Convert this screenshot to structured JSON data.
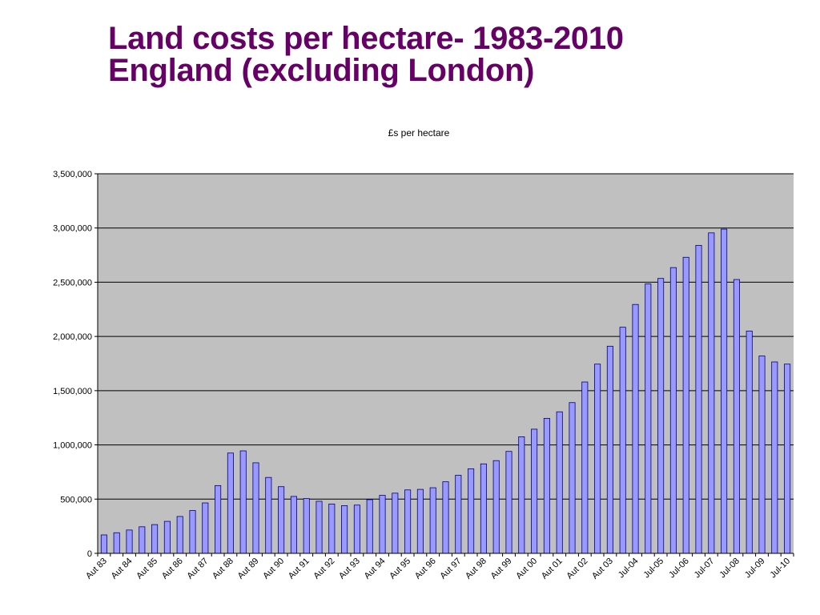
{
  "slide": {
    "title_line1": "Land costs per hectare- 1983-2010",
    "title_line2": "England (excluding London)",
    "title_color": "#660066"
  },
  "chart_data": {
    "type": "bar",
    "title": "£s per hectare",
    "xlabel": "",
    "ylabel": "",
    "ylim": [
      0,
      3500000
    ],
    "yticks": [
      0,
      500000,
      1000000,
      1500000,
      2000000,
      2500000,
      3000000,
      3500000
    ],
    "ytick_labels": [
      "0",
      "500,000",
      "1,000,000",
      "1,500,000",
      "2,000,000",
      "2,500,000",
      "3,000,000",
      "3,500,000"
    ],
    "grid": true,
    "plot_background": "#c0c0c0",
    "bar_color": "#9999ff",
    "bar_edge_color": "#000080",
    "categories": [
      "Aut 83",
      "",
      "Aut 84",
      "",
      "Aut 85",
      "",
      "Aut 86",
      "",
      "Aut 87",
      "",
      "Aut 88",
      "",
      "Aut 89",
      "",
      "Aut 90",
      "",
      "Aut 91",
      "",
      "Aut 92",
      "",
      "Aut 93",
      "",
      "Aut 94",
      "",
      "Aut 95",
      "",
      "Aut 96",
      "",
      "Aut 97",
      "",
      "Aut 98",
      "",
      "Aut 99",
      "",
      "Aut 00",
      "",
      "Aut 01",
      "",
      "Aut 02",
      "",
      "Aut 03",
      "",
      "Jul-04",
      "",
      "Jul-05",
      "",
      "Jul-06",
      "",
      "Jul-07",
      "",
      "Jul-08",
      "",
      "Jul-09",
      "",
      "Jul-10"
    ],
    "values": [
      170000,
      190000,
      215000,
      245000,
      265000,
      295000,
      340000,
      395000,
      465000,
      625000,
      925000,
      945000,
      835000,
      700000,
      615000,
      525000,
      505000,
      480000,
      455000,
      440000,
      445000,
      495000,
      535000,
      555000,
      585000,
      590000,
      605000,
      660000,
      720000,
      780000,
      825000,
      855000,
      940000,
      1075000,
      1145000,
      1245000,
      1305000,
      1390000,
      1580000,
      1745000,
      1910000,
      2085000,
      2295000,
      2485000,
      2535000,
      2635000,
      2730000,
      2840000,
      2955000,
      2990000,
      2525000,
      2050000,
      1820000,
      1765000,
      1745000
    ]
  }
}
